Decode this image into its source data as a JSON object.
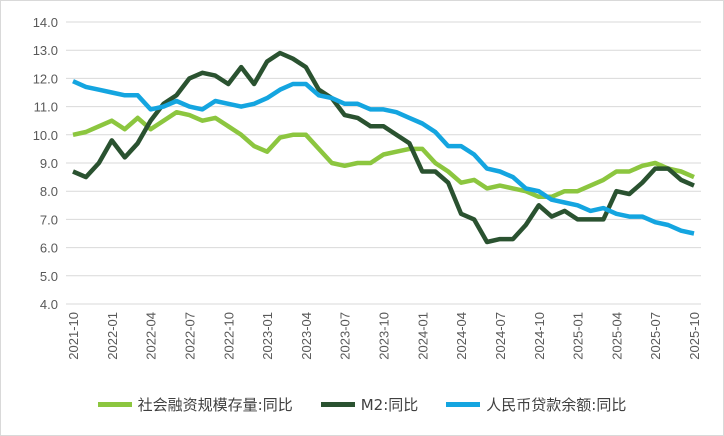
{
  "chart_data": {
    "type": "line",
    "title": "",
    "xlabel": "",
    "ylabel": "",
    "ylim": [
      4.0,
      14.0
    ],
    "yticks": [
      "4.0",
      "5.0",
      "6.0",
      "7.0",
      "8.0",
      "9.0",
      "10.0",
      "11.0",
      "12.0",
      "13.0",
      "14.0"
    ],
    "grid": true,
    "legend_position": "bottom",
    "x": [
      "2021-10",
      "2021-11",
      "2021-12",
      "2022-01",
      "2022-02",
      "2022-03",
      "2022-04",
      "2022-05",
      "2022-06",
      "2022-07",
      "2022-08",
      "2022-09",
      "2022-10",
      "2022-11",
      "2022-12",
      "2023-01",
      "2023-02",
      "2023-03",
      "2023-04",
      "2023-05",
      "2023-06",
      "2023-07",
      "2023-08",
      "2023-09",
      "2023-10",
      "2023-11",
      "2023-12",
      "2024-01",
      "2024-02",
      "2024-03",
      "2024-04",
      "2024-05",
      "2024-06",
      "2024-07",
      "2024-08",
      "2024-09",
      "2024-10",
      "2024-11",
      "2024-12",
      "2025-01",
      "2025-02",
      "2025-03",
      "2025-04",
      "2025-05",
      "2025-06",
      "2025-07",
      "2025-08",
      "2025-09",
      "2025-10"
    ],
    "xtick_labels": [
      "2021-10",
      "2022-01",
      "2022-04",
      "2022-07",
      "2022-10",
      "2023-01",
      "2023-04",
      "2023-07",
      "2023-10",
      "2024-01",
      "2024-04",
      "2024-07",
      "2024-10",
      "2025-01",
      "2025-04",
      "2025-07",
      "2025-10"
    ],
    "series": [
      {
        "name": "社会融资规模存量:同比",
        "color": "#8cc63f",
        "values": [
          10.0,
          10.1,
          10.3,
          10.5,
          10.2,
          10.6,
          10.2,
          10.5,
          10.8,
          10.7,
          10.5,
          10.6,
          10.3,
          10.0,
          9.6,
          9.4,
          9.9,
          10.0,
          10.0,
          9.5,
          9.0,
          8.9,
          9.0,
          9.0,
          9.3,
          9.4,
          9.5,
          9.5,
          9.0,
          8.7,
          8.3,
          8.4,
          8.1,
          8.2,
          8.1,
          8.0,
          7.8,
          7.8,
          8.0,
          8.0,
          8.2,
          8.4,
          8.7,
          8.7,
          8.9,
          9.0,
          8.8,
          8.7,
          8.5
        ]
      },
      {
        "name": "M2:同比",
        "color": "#2a5230",
        "values": [
          8.7,
          8.5,
          9.0,
          9.8,
          9.2,
          9.7,
          10.5,
          11.1,
          11.4,
          12.0,
          12.2,
          12.1,
          11.8,
          12.4,
          11.8,
          12.6,
          12.9,
          12.7,
          12.4,
          11.6,
          11.3,
          10.7,
          10.6,
          10.3,
          10.3,
          10.0,
          9.7,
          8.7,
          8.7,
          8.3,
          7.2,
          7.0,
          6.2,
          6.3,
          6.3,
          6.8,
          7.5,
          7.1,
          7.3,
          7.0,
          7.0,
          7.0,
          8.0,
          7.9,
          8.3,
          8.8,
          8.8,
          8.4,
          8.2
        ]
      },
      {
        "name": "人民币贷款余额:同比",
        "color": "#14a5e0",
        "values": [
          11.9,
          11.7,
          11.6,
          11.5,
          11.4,
          11.4,
          10.9,
          11.0,
          11.2,
          11.0,
          10.9,
          11.2,
          11.1,
          11.0,
          11.1,
          11.3,
          11.6,
          11.8,
          11.8,
          11.4,
          11.3,
          11.1,
          11.1,
          10.9,
          10.9,
          10.8,
          10.6,
          10.4,
          10.1,
          9.6,
          9.6,
          9.3,
          8.8,
          8.7,
          8.5,
          8.1,
          8.0,
          7.7,
          7.6,
          7.5,
          7.3,
          7.4,
          7.2,
          7.1,
          7.1,
          6.9,
          6.8,
          6.6,
          6.5
        ]
      }
    ]
  }
}
